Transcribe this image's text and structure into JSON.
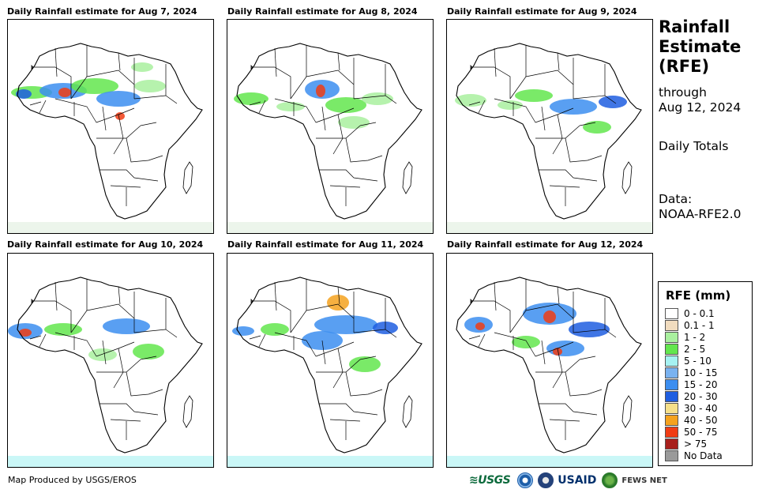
{
  "panels": [
    {
      "title": "Daily Rainfall estimate for Aug 7, 2024"
    },
    {
      "title": "Daily Rainfall estimate for Aug 8, 2024"
    },
    {
      "title": "Daily Rainfall estimate for Aug 9, 2024"
    },
    {
      "title": "Daily Rainfall estimate for Aug 10, 2024"
    },
    {
      "title": "Daily Rainfall estimate for Aug 11, 2024"
    },
    {
      "title": "Daily Rainfall estimate for Aug 12, 2024"
    }
  ],
  "sidebar": {
    "title_line1": "Rainfall",
    "title_line2": "Estimate",
    "title_line3": "(RFE)",
    "through_label": "through",
    "through_date": "Aug 12, 2024",
    "period": "Daily Totals",
    "data_label": "Data:",
    "data_source": "NOAA-RFE2.0"
  },
  "legend": {
    "title": "RFE (mm)",
    "items": [
      {
        "label": "0 - 0.1",
        "color": "#ffffff"
      },
      {
        "label": "0.1 - 1",
        "color": "#f1dcbf"
      },
      {
        "label": "1 - 2",
        "color": "#a9f09f"
      },
      {
        "label": "2 - 5",
        "color": "#63e64e"
      },
      {
        "label": "5 - 10",
        "color": "#a6f2f2"
      },
      {
        "label": "10 - 15",
        "color": "#79b2f0"
      },
      {
        "label": "15 - 20",
        "color": "#3c8ef0"
      },
      {
        "label": "20 - 30",
        "color": "#1f5ee0"
      },
      {
        "label": "30 - 40",
        "color": "#f6e08a"
      },
      {
        "label": "40 - 50",
        "color": "#f5a21e"
      },
      {
        "label": "50 - 75",
        "color": "#f03c14"
      },
      {
        "label": "> 75",
        "color": "#a8201c"
      },
      {
        "label": "No Data",
        "color": "#9a9a9a"
      }
    ]
  },
  "footer": {
    "credit": "Map Produced by USGS/EROS",
    "logos": {
      "usgs": "≋USGS",
      "usaid": "USAID",
      "fews": "FEWS NET"
    }
  }
}
